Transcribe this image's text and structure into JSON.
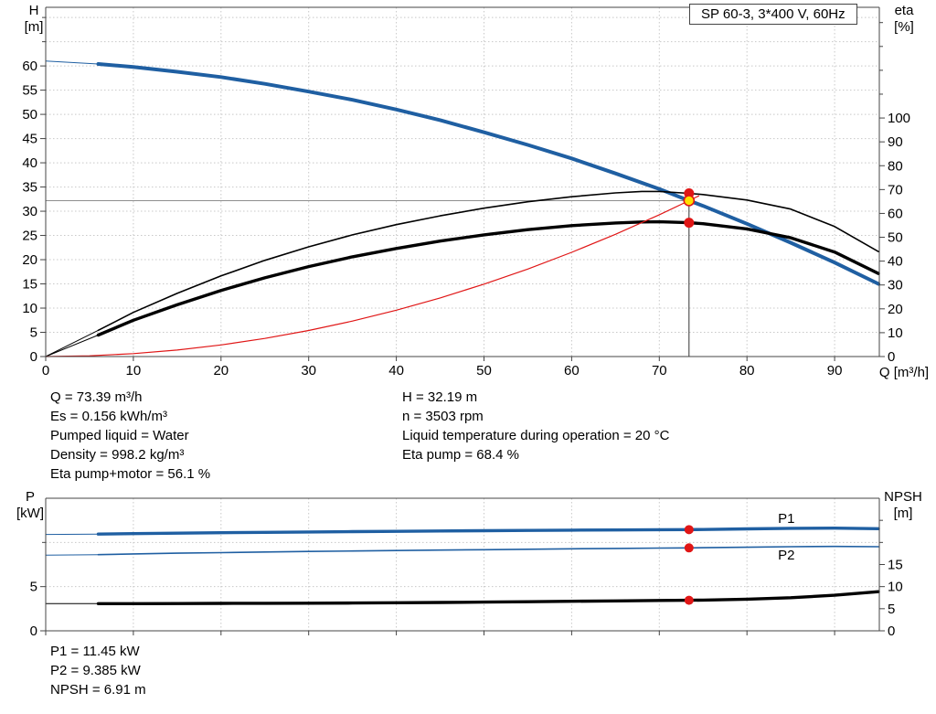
{
  "colors": {
    "grid": "#c8c8c8",
    "axis": "#444444",
    "crosshair_h": "#8f8f8f",
    "crosshair_v": "#333333",
    "curve_blue": "#1f5fa2",
    "red": "#e01616",
    "yellow": "#ffdf00"
  },
  "annotations": {
    "left": [
      "Q = 73.39 m³/h",
      "Es = 0.156 kWh/m³",
      "Pumped liquid = Water",
      "Density = 998.2 kg/m³",
      "Eta pump+motor = 56.1 %"
    ],
    "right": [
      "H = 32.19 m",
      "n = 3503 rpm",
      "Liquid temperature during operation = 20 °C",
      "Eta pump = 68.4 %"
    ],
    "bottom": [
      "P1 = 11.45 kW",
      "P2 = 9.385 kW",
      "NPSH = 6.91 m"
    ]
  },
  "chart_data": [
    {
      "type": "line",
      "name": "qh-eta-chart",
      "title": "SP 60-3, 3*400 V, 60Hz",
      "x_axis": {
        "label": "Q [m³/h]",
        "min": 0,
        "max": 95.1,
        "show_labels": true,
        "ticks": [
          0,
          10,
          20,
          30,
          40,
          50,
          60,
          70,
          80,
          90
        ],
        "grid": [
          10,
          20,
          30,
          40,
          50,
          60,
          70,
          80,
          90
        ]
      },
      "y_left": {
        "label": "H\n[m]",
        "min": 0,
        "max": 72.1,
        "ticks": [
          0,
          5,
          10,
          15,
          20,
          25,
          30,
          35,
          40,
          45,
          50,
          55,
          60
        ],
        "minor_ticks": [
          65,
          70
        ],
        "grid": [
          5,
          10,
          15,
          20,
          25,
          30,
          35,
          40,
          45,
          50,
          55,
          60,
          65,
          70
        ]
      },
      "y_right": {
        "label": "eta\n[%]",
        "min": 0,
        "max": 146.4,
        "ticks": [
          0,
          10,
          20,
          30,
          40,
          50,
          60,
          70,
          80,
          90,
          100
        ],
        "minor_ticks": [
          110,
          120,
          130,
          140
        ],
        "grid": []
      },
      "duty_point": {
        "Q": 73.39,
        "H": 32.19,
        "eta_pump": 68.4,
        "eta_pump_motor": 56.1
      },
      "h_line": {
        "axis": "left",
        "value": 32.19,
        "to_q": 73.39
      },
      "v_line": {
        "q": 73.39,
        "to_axis": "right",
        "to_value": 68.4
      },
      "series": [
        {
          "name": "qh",
          "axis": "left",
          "color": "#1f5fa2",
          "width": 4,
          "lead": [
            [
              0,
              61
            ],
            [
              6,
              60.4
            ]
          ],
          "points": [
            [
              6,
              60.4
            ],
            [
              10,
              59.8
            ],
            [
              15,
              58.8
            ],
            [
              20,
              57.7
            ],
            [
              25,
              56.3
            ],
            [
              30,
              54.7
            ],
            [
              35,
              53.0
            ],
            [
              40,
              51.0
            ],
            [
              45,
              48.8
            ],
            [
              50,
              46.3
            ],
            [
              55,
              43.7
            ],
            [
              60,
              40.9
            ],
            [
              65,
              37.8
            ],
            [
              70,
              34.6
            ],
            [
              73.39,
              32.19
            ],
            [
              75,
              31.1
            ],
            [
              80,
              27.4
            ],
            [
              85,
              23.5
            ],
            [
              90,
              19.4
            ],
            [
              95,
              15.0
            ]
          ]
        },
        {
          "name": "eta-pump",
          "axis": "right",
          "color": "#000000",
          "width": 1.6,
          "lead": [
            [
              0,
              0
            ],
            [
              6,
              11
            ]
          ],
          "points": [
            [
              6,
              11
            ],
            [
              10,
              18.5
            ],
            [
              15,
              26.5
            ],
            [
              20,
              33.8
            ],
            [
              25,
              40.3
            ],
            [
              30,
              46
            ],
            [
              35,
              51
            ],
            [
              40,
              55.3
            ],
            [
              45,
              59
            ],
            [
              50,
              62.2
            ],
            [
              55,
              64.9
            ],
            [
              60,
              67
            ],
            [
              65,
              68.6
            ],
            [
              68,
              69.2
            ],
            [
              70,
              69.2
            ],
            [
              73.39,
              68.4
            ],
            [
              75,
              67.9
            ],
            [
              80,
              65.6
            ],
            [
              85,
              61.8
            ],
            [
              90,
              54.5
            ],
            [
              95,
              44
            ]
          ]
        },
        {
          "name": "eta-pump-motor",
          "axis": "right",
          "color": "#000000",
          "width": 3.4,
          "lead": [
            [
              0,
              0
            ],
            [
              6,
              9
            ]
          ],
          "points": [
            [
              6,
              9
            ],
            [
              10,
              15.2
            ],
            [
              15,
              21.7
            ],
            [
              20,
              27.7
            ],
            [
              25,
              33
            ],
            [
              30,
              37.7
            ],
            [
              35,
              41.8
            ],
            [
              40,
              45.3
            ],
            [
              45,
              48.4
            ],
            [
              50,
              51
            ],
            [
              55,
              53.2
            ],
            [
              60,
              54.9
            ],
            [
              65,
              56
            ],
            [
              68,
              56.4
            ],
            [
              70,
              56.5
            ],
            [
              73.39,
              56.1
            ],
            [
              75,
              55.7
            ],
            [
              80,
              53.5
            ],
            [
              85,
              49.8
            ],
            [
              90,
              43.8
            ],
            [
              95,
              34.8
            ]
          ]
        },
        {
          "name": "system-curve",
          "axis": "left",
          "color": "#e01616",
          "width": 1.2,
          "points": [
            [
              0,
              0
            ],
            [
              5,
              0.15
            ],
            [
              10,
              0.6
            ],
            [
              15,
              1.34
            ],
            [
              20,
              2.39
            ],
            [
              25,
              3.73
            ],
            [
              30,
              5.38
            ],
            [
              35,
              7.32
            ],
            [
              40,
              9.56
            ],
            [
              45,
              12.1
            ],
            [
              50,
              14.94
            ],
            [
              55,
              18.07
            ],
            [
              60,
              21.51
            ],
            [
              65,
              25.24
            ],
            [
              70,
              29.27
            ],
            [
              73.39,
              32.19
            ],
            [
              74.5,
              33.17
            ]
          ]
        }
      ],
      "markers": [
        {
          "name": "duty-point-eta-pump",
          "q": 73.39,
          "axis": "right",
          "value": 68.4,
          "fill": "#e01616",
          "r": 5.5
        },
        {
          "name": "duty-point-qh",
          "q": 73.39,
          "axis": "left",
          "value": 32.19,
          "fill": "#ffdf00",
          "stroke": "#e01616",
          "r": 5.5
        },
        {
          "name": "duty-point-eta-pump-motor",
          "q": 73.39,
          "axis": "right",
          "value": 56.1,
          "fill": "#e01616",
          "r": 5.5
        }
      ]
    },
    {
      "type": "line",
      "name": "power-npsh-chart",
      "x_axis": {
        "label": "",
        "min": 0,
        "max": 95.1,
        "show_labels": false,
        "ticks": [
          0,
          10,
          20,
          30,
          40,
          50,
          60,
          70,
          80,
          90
        ],
        "grid": [
          10,
          20,
          30,
          40,
          50,
          60,
          70,
          80,
          90
        ]
      },
      "y_left": {
        "label": "P\n[kW]",
        "min": 0,
        "max": 15,
        "ticks": [
          0,
          5
        ],
        "minor_ticks": [
          10
        ],
        "grid": [
          5,
          10
        ]
      },
      "y_right": {
        "label": "NPSH\n[m]",
        "min": 0,
        "max": 30,
        "ticks": [
          0,
          5,
          10,
          15
        ],
        "minor_ticks": [
          20,
          25
        ],
        "grid": []
      },
      "duty_point": {
        "Q": 73.39,
        "P1": 11.45,
        "P2": 9.385,
        "NPSH": 6.91
      },
      "series": [
        {
          "name": "p1",
          "axis": "left",
          "color": "#1f5fa2",
          "width": 3.4,
          "label": "P1",
          "label_q": 84.5,
          "label_v": 12.2,
          "lead": [
            [
              0,
              10.9
            ],
            [
              6,
              10.95
            ]
          ],
          "points": [
            [
              6,
              10.95
            ],
            [
              10,
              11.0
            ],
            [
              15,
              11.05
            ],
            [
              20,
              11.1
            ],
            [
              25,
              11.14
            ],
            [
              30,
              11.18
            ],
            [
              35,
              11.22
            ],
            [
              40,
              11.26
            ],
            [
              45,
              11.3
            ],
            [
              50,
              11.33
            ],
            [
              55,
              11.36
            ],
            [
              60,
              11.39
            ],
            [
              65,
              11.41
            ],
            [
              70,
              11.44
            ],
            [
              73.39,
              11.45
            ],
            [
              75,
              11.46
            ],
            [
              80,
              11.53
            ],
            [
              85,
              11.6
            ],
            [
              90,
              11.62
            ],
            [
              95,
              11.55
            ]
          ]
        },
        {
          "name": "p2",
          "axis": "left",
          "color": "#1f5fa2",
          "width": 1.6,
          "label": "P2",
          "label_q": 84.5,
          "label_v": 8.05,
          "lead": [
            [
              0,
              8.55
            ],
            [
              6,
              8.62
            ]
          ],
          "points": [
            [
              6,
              8.62
            ],
            [
              10,
              8.7
            ],
            [
              15,
              8.78
            ],
            [
              20,
              8.85
            ],
            [
              25,
              8.92
            ],
            [
              30,
              8.98
            ],
            [
              35,
              9.03
            ],
            [
              40,
              9.08
            ],
            [
              45,
              9.13
            ],
            [
              50,
              9.18
            ],
            [
              55,
              9.23
            ],
            [
              60,
              9.28
            ],
            [
              65,
              9.32
            ],
            [
              70,
              9.36
            ],
            [
              73.39,
              9.385
            ],
            [
              75,
              9.4
            ],
            [
              80,
              9.46
            ],
            [
              85,
              9.52
            ],
            [
              90,
              9.55
            ],
            [
              95,
              9.52
            ]
          ]
        },
        {
          "name": "npsh",
          "axis": "right",
          "color": "#000000",
          "width": 3.4,
          "lead": [
            [
              0,
              6.15
            ],
            [
              6,
              6.15
            ]
          ],
          "points": [
            [
              6,
              6.15
            ],
            [
              10,
              6.15
            ],
            [
              15,
              6.17
            ],
            [
              20,
              6.2
            ],
            [
              25,
              6.22
            ],
            [
              30,
              6.25
            ],
            [
              35,
              6.3
            ],
            [
              40,
              6.35
            ],
            [
              45,
              6.42
            ],
            [
              50,
              6.5
            ],
            [
              55,
              6.58
            ],
            [
              60,
              6.68
            ],
            [
              65,
              6.76
            ],
            [
              70,
              6.86
            ],
            [
              73.39,
              6.91
            ],
            [
              75,
              6.95
            ],
            [
              80,
              7.15
            ],
            [
              85,
              7.5
            ],
            [
              90,
              8.05
            ],
            [
              95,
              8.85
            ]
          ]
        }
      ],
      "markers": [
        {
          "name": "duty-point-p1",
          "q": 73.39,
          "axis": "left",
          "value": 11.45,
          "fill": "#e01616",
          "r": 5
        },
        {
          "name": "duty-point-p2",
          "q": 73.39,
          "axis": "left",
          "value": 9.385,
          "fill": "#e01616",
          "r": 5
        },
        {
          "name": "duty-point-npsh",
          "q": 73.39,
          "axis": "right",
          "value": 6.91,
          "fill": "#e01616",
          "r": 5
        }
      ]
    }
  ]
}
